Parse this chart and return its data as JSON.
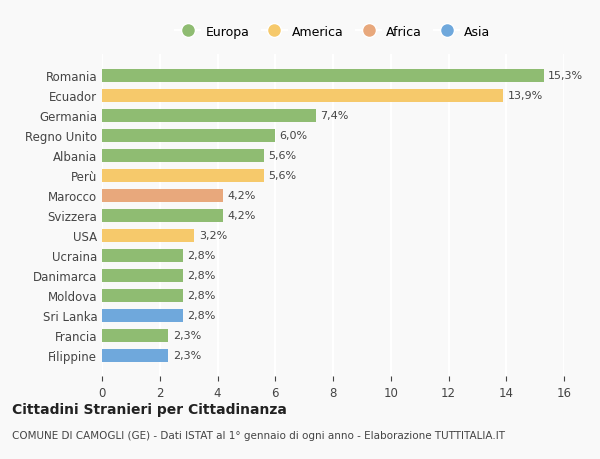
{
  "countries": [
    "Filippine",
    "Francia",
    "Sri Lanka",
    "Moldova",
    "Danimarca",
    "Ucraina",
    "USA",
    "Svizzera",
    "Marocco",
    "Perù",
    "Albania",
    "Regno Unito",
    "Germania",
    "Ecuador",
    "Romania"
  ],
  "values": [
    2.3,
    2.3,
    2.8,
    2.8,
    2.8,
    2.8,
    3.2,
    4.2,
    4.2,
    5.6,
    5.6,
    6.0,
    7.4,
    13.9,
    15.3
  ],
  "labels": [
    "2,3%",
    "2,3%",
    "2,8%",
    "2,8%",
    "2,8%",
    "2,8%",
    "3,2%",
    "4,2%",
    "4,2%",
    "5,6%",
    "5,6%",
    "6,0%",
    "7,4%",
    "13,9%",
    "15,3%"
  ],
  "colors": [
    "#6fa8dc",
    "#8fbc72",
    "#6fa8dc",
    "#8fbc72",
    "#8fbc72",
    "#8fbc72",
    "#f6c96b",
    "#8fbc72",
    "#e8a87c",
    "#f6c96b",
    "#8fbc72",
    "#8fbc72",
    "#8fbc72",
    "#f6c96b",
    "#8fbc72"
  ],
  "legend_labels": [
    "Europa",
    "America",
    "Africa",
    "Asia"
  ],
  "legend_colors": [
    "#8fbc72",
    "#f6c96b",
    "#e8a87c",
    "#6fa8dc"
  ],
  "title": "Cittadini Stranieri per Cittadinanza",
  "subtitle": "COMUNE DI CAMOGLI (GE) - Dati ISTAT al 1° gennaio di ogni anno - Elaborazione TUTTITALIA.IT",
  "xlim": [
    0,
    16
  ],
  "xticks": [
    0,
    2,
    4,
    6,
    8,
    10,
    12,
    14,
    16
  ],
  "background_color": "#f9f9f9",
  "grid_color": "#ffffff",
  "bar_height": 0.65
}
